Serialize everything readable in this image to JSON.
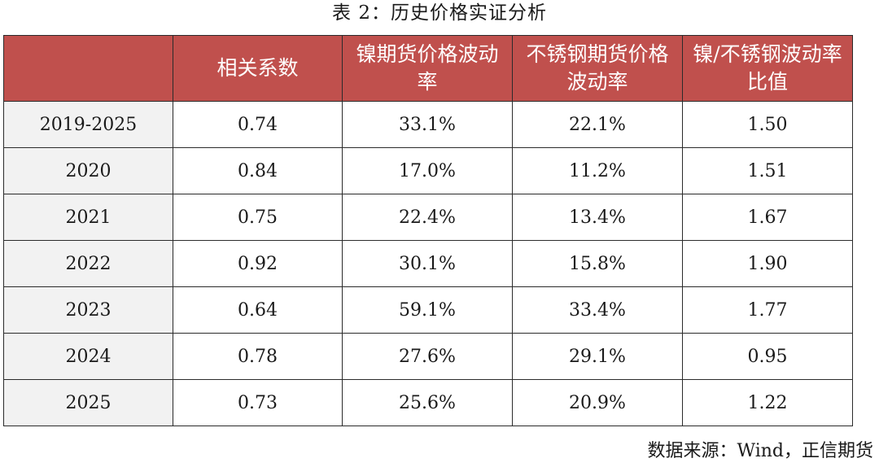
{
  "caption": "表 2：历史价格实证分析",
  "table": {
    "headers": [
      "",
      "相关系数",
      "镍期货价格波动率",
      "不锈钢期货价格波动率",
      "镍/不锈钢波动率比值"
    ],
    "rows": [
      [
        "2019-2025",
        "0.74",
        "33.1%",
        "22.1%",
        "1.50"
      ],
      [
        "2020",
        "0.84",
        "17.0%",
        "11.2%",
        "1.51"
      ],
      [
        "2021",
        "0.75",
        "22.4%",
        "13.4%",
        "1.67"
      ],
      [
        "2022",
        "0.92",
        "30.1%",
        "15.8%",
        "1.90"
      ],
      [
        "2023",
        "0.64",
        "59.1%",
        "33.4%",
        "1.77"
      ],
      [
        "2024",
        "0.78",
        "27.6%",
        "29.1%",
        "0.95"
      ],
      [
        "2025",
        "0.73",
        "25.6%",
        "20.9%",
        "1.22"
      ]
    ]
  },
  "source": "数据来源：Wind，正信期货",
  "colors": {
    "header_bg": "#c0504d",
    "header_text": "#ffffff",
    "row_label_bg": "#f2f2f2",
    "border": "#2b2b2b"
  }
}
